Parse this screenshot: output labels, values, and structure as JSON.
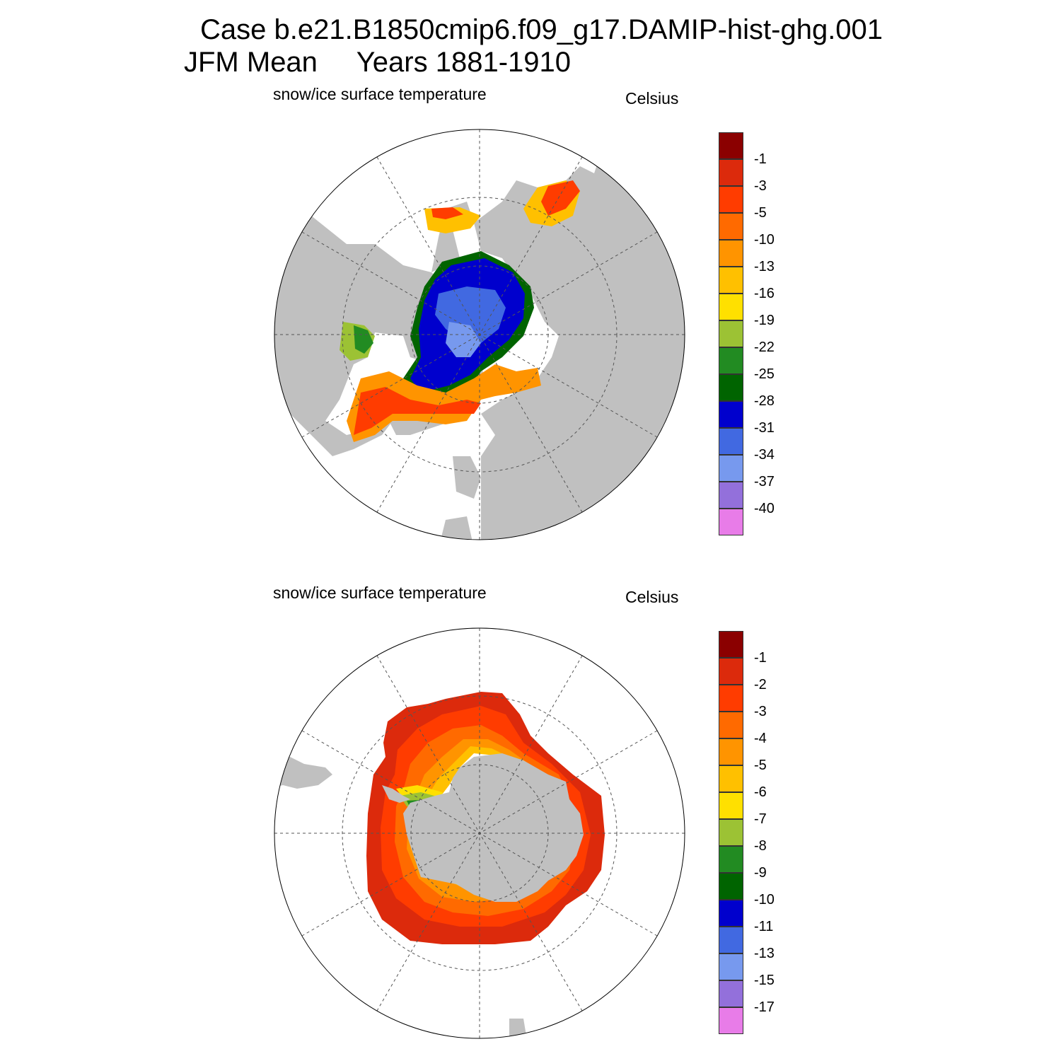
{
  "title": {
    "line1": "Case b.e21.B1850cmip6.f09_g17.DAMIP-hist-ghg.001",
    "line2": "JFM Mean     Years 1881-1910"
  },
  "colors": {
    "land": "#c0c0c0",
    "grid": "#555555",
    "scale": [
      "#8b0000",
      "#dc2a0c",
      "#ff3c00",
      "#ff6a00",
      "#ff9400",
      "#ffc000",
      "#ffe000",
      "#9cc234",
      "#228b22",
      "#006400",
      "#0000cd",
      "#4169e1",
      "#7799ee",
      "#9370db",
      "#e87ce8"
    ]
  },
  "panels": [
    {
      "id": "north",
      "left_label": "snow/ice surface temperature",
      "right_label": "Celsius",
      "hemisphere": "Northern",
      "colorbar_labels": [
        "-1",
        "-3",
        "-5",
        "-10",
        "-13",
        "-16",
        "-19",
        "-22",
        "-25",
        "-28",
        "-31",
        "-34",
        "-37",
        "-40"
      ]
    },
    {
      "id": "south",
      "left_label": "snow/ice surface temperature",
      "right_label": "Celsius",
      "hemisphere": "Southern",
      "colorbar_labels": [
        "-1",
        "-2",
        "-3",
        "-4",
        "-5",
        "-6",
        "-7",
        "-8",
        "-9",
        "-10",
        "-11",
        "-13",
        "-15",
        "-17"
      ]
    }
  ]
}
